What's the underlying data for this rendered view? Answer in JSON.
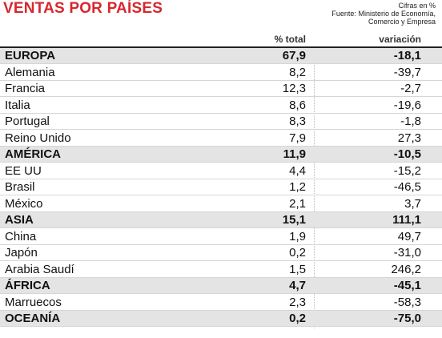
{
  "header": {
    "title": "VENTAS POR PAÍSES",
    "note": "Cifras en %",
    "source": [
      "Fuente: Ministerio de Economía,",
      "Comercio y Empresa"
    ]
  },
  "table": {
    "columns": [
      "% total",
      "variación"
    ],
    "groups": [
      {
        "name": "EUROPA",
        "total": "67,9",
        "change": "-18,1",
        "rows": [
          [
            "Alemania",
            "8,2",
            "-39,7"
          ],
          [
            "Francia",
            "12,3",
            "-2,7"
          ],
          [
            "Italia",
            "8,6",
            "-19,6"
          ],
          [
            "Portugal",
            "8,3",
            "-1,8"
          ],
          [
            "Reino Unido",
            "7,9",
            "27,3"
          ]
        ]
      },
      {
        "name": "AMÉRICA",
        "total": "11,9",
        "change": "-10,5",
        "rows": [
          [
            "EE UU",
            "4,4",
            "-15,2"
          ],
          [
            "Brasil",
            "1,2",
            "-46,5"
          ],
          [
            "México",
            "2,1",
            "3,7"
          ]
        ]
      },
      {
        "name": "ASIA",
        "total": "15,1",
        "change": "111,1",
        "rows": [
          [
            "China",
            "1,9",
            "49,7"
          ],
          [
            "Japón",
            "0,2",
            "-31,0"
          ],
          [
            "Arabia Saudí",
            "1,5",
            "246,2"
          ]
        ]
      },
      {
        "name": "ÁFRICA",
        "total": "4,7",
        "change": "-45,1",
        "rows": [
          [
            "Marruecos",
            "2,3",
            "-58,3"
          ]
        ]
      },
      {
        "name": "OCEANÍA",
        "total": "0,2",
        "change": "-75,0",
        "rows": []
      }
    ]
  }
}
